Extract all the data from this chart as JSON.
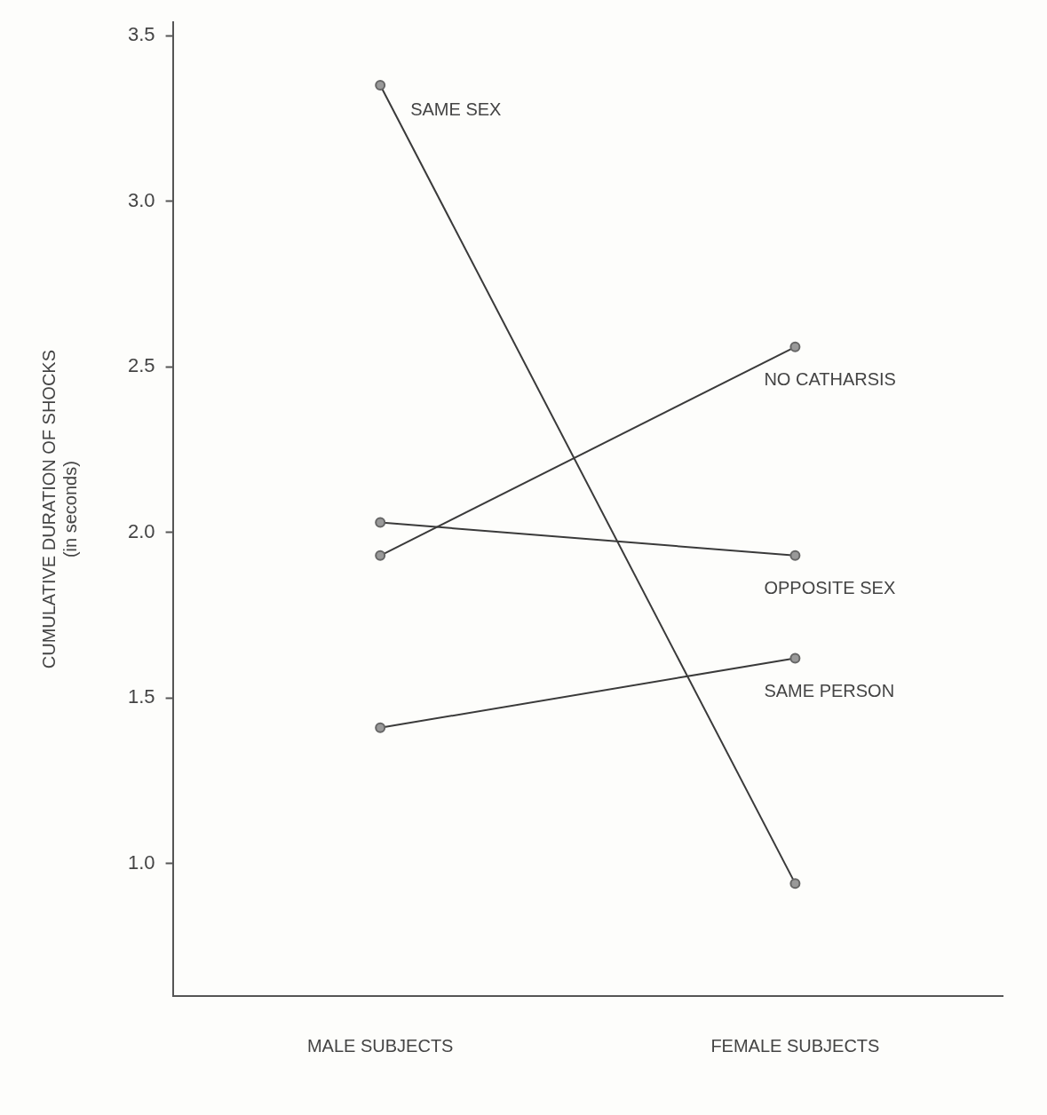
{
  "chart_data": {
    "type": "line",
    "ylabel": "CUMULATIVE DURATION OF SHOCKS\n(in seconds)",
    "categories": [
      "MALE SUBJECTS",
      "FEMALE SUBJECTS"
    ],
    "series": [
      {
        "name": "SAME SEX",
        "color": "#3a3a3a",
        "values": [
          3.35,
          0.94
        ]
      },
      {
        "name": "NO CATHARSIS",
        "color": "#3a3a3a",
        "values": [
          1.93,
          2.56
        ]
      },
      {
        "name": "OPPOSITE SEX",
        "color": "#3a3a3a",
        "values": [
          2.03,
          1.93
        ]
      },
      {
        "name": "SAME PERSON",
        "color": "#3a3a3a",
        "values": [
          1.41,
          1.62
        ]
      }
    ],
    "ylim": [
      0.6,
      3.54
    ],
    "yticks": [
      {
        "value": 1,
        "label": "1.0"
      },
      {
        "value": 1.5,
        "label": "1.5"
      },
      {
        "value": 2,
        "label": "2.0"
      },
      {
        "value": 2.5,
        "label": "2.5"
      },
      {
        "value": 3,
        "label": "3.0"
      },
      {
        "value": 3.5,
        "label": "3.5"
      }
    ],
    "grid": false,
    "legend": false,
    "marker": "circle",
    "line_style": "solid"
  }
}
